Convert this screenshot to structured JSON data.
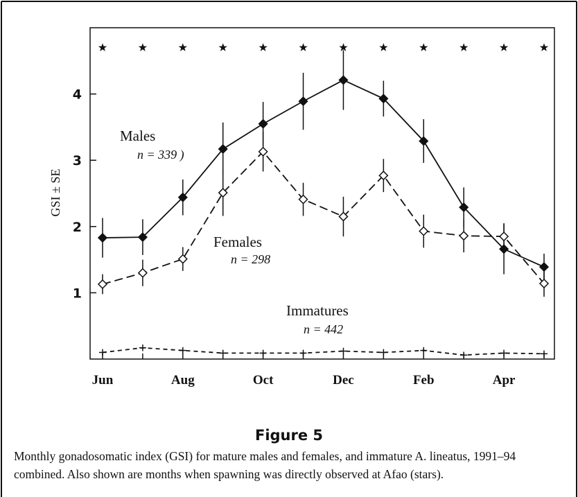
{
  "chart_data": {
    "type": "line",
    "figure_label": "Figure 5",
    "caption": "Monthly gonadosomatic index (GSI) for mature males and females, and immature A. lineatus, 1991–94 combined. Also shown are months when spawning was directly observed at Afao (stars).",
    "ylabel": "GSI ± SE",
    "categories": [
      "Jun",
      null,
      "Aug",
      null,
      "Oct",
      null,
      "Dec",
      null,
      "Feb",
      null,
      "Apr",
      null
    ],
    "ylim": [
      0,
      5
    ],
    "yticks": [
      1,
      2,
      3,
      4
    ],
    "series": [
      {
        "name": "Males",
        "n_label": "n = 339 )",
        "color": "#111",
        "dash": "none",
        "marker": "filled-diamond",
        "values": [
          1.83,
          1.84,
          2.44,
          3.17,
          3.55,
          3.89,
          4.21,
          3.93,
          3.29,
          2.29,
          1.66,
          1.39
        ],
        "errors": [
          0.3,
          0.27,
          0.27,
          0.4,
          0.33,
          0.43,
          0.45,
          0.27,
          0.33,
          0.3,
          0.38,
          0.2
        ]
      },
      {
        "name": "Females",
        "n_label": "n = 298",
        "color": "#111",
        "dash": "12 6",
        "marker": "open-diamond",
        "values": [
          1.13,
          1.3,
          1.51,
          2.51,
          3.13,
          2.41,
          2.15,
          2.77,
          1.93,
          1.86,
          1.85,
          1.14
        ],
        "errors": [
          0.15,
          0.2,
          0.18,
          0.35,
          0.3,
          0.25,
          0.3,
          0.25,
          0.25,
          0.25,
          0.2,
          0.2
        ]
      },
      {
        "name": "Immatures",
        "n_label": "n = 442",
        "color": "#111",
        "dash": "6 5",
        "marker": "none",
        "values": [
          0.1,
          0.17,
          0.13,
          0.09,
          0.09,
          0.09,
          0.12,
          0.1,
          0.13,
          0.06,
          0.09,
          0.08
        ],
        "errors": [
          0.05,
          0.05,
          0.05,
          0.05,
          0.05,
          0.05,
          0.05,
          0.05,
          0.05,
          0.05,
          0.05,
          0.05
        ]
      },
      {
        "marker": "star",
        "dash": "hidden",
        "color": "#111",
        "values": [
          4.7,
          4.7,
          4.7,
          4.7,
          4.7,
          4.7,
          4.7,
          4.7,
          4.7,
          4.7,
          4.7,
          4.7
        ]
      }
    ]
  }
}
